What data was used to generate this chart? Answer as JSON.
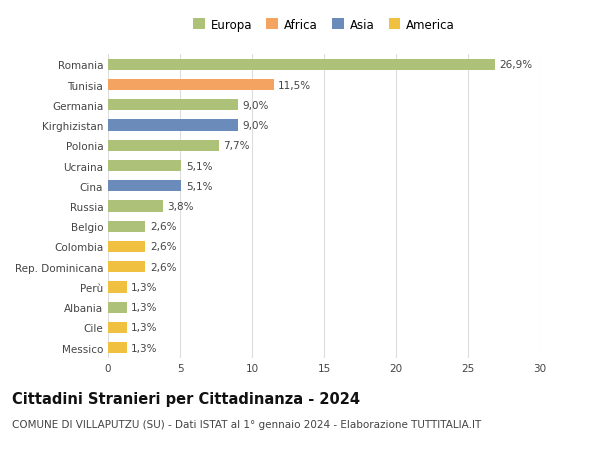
{
  "countries": [
    "Romania",
    "Tunisia",
    "Germania",
    "Kirghizistan",
    "Polonia",
    "Ucraina",
    "Cina",
    "Russia",
    "Belgio",
    "Colombia",
    "Rep. Dominicana",
    "Perù",
    "Albania",
    "Cile",
    "Messico"
  ],
  "values": [
    26.9,
    11.5,
    9.0,
    9.0,
    7.7,
    5.1,
    5.1,
    3.8,
    2.6,
    2.6,
    2.6,
    1.3,
    1.3,
    1.3,
    1.3
  ],
  "labels": [
    "26,9%",
    "11,5%",
    "9,0%",
    "9,0%",
    "7,7%",
    "5,1%",
    "5,1%",
    "3,8%",
    "2,6%",
    "2,6%",
    "2,6%",
    "1,3%",
    "1,3%",
    "1,3%",
    "1,3%"
  ],
  "colors": [
    "#adc178",
    "#f4a460",
    "#adc178",
    "#6b8cba",
    "#adc178",
    "#adc178",
    "#6b8cba",
    "#adc178",
    "#adc178",
    "#f0c040",
    "#f0c040",
    "#f0c040",
    "#adc178",
    "#f0c040",
    "#f0c040"
  ],
  "legend_labels": [
    "Europa",
    "Africa",
    "Asia",
    "America"
  ],
  "legend_colors": [
    "#adc178",
    "#f4a460",
    "#6b8cba",
    "#f0c040"
  ],
  "title": "Cittadini Stranieri per Cittadinanza - 2024",
  "subtitle": "COMUNE DI VILLAPUTZU (SU) - Dati ISTAT al 1° gennaio 2024 - Elaborazione TUTTITALIA.IT",
  "xlim": [
    0,
    30
  ],
  "xticks": [
    0,
    5,
    10,
    15,
    20,
    25,
    30
  ],
  "background_color": "#ffffff",
  "grid_color": "#dddddd",
  "bar_height": 0.55,
  "title_fontsize": 10.5,
  "subtitle_fontsize": 7.5,
  "label_fontsize": 7.5,
  "tick_fontsize": 7.5,
  "legend_fontsize": 8.5
}
